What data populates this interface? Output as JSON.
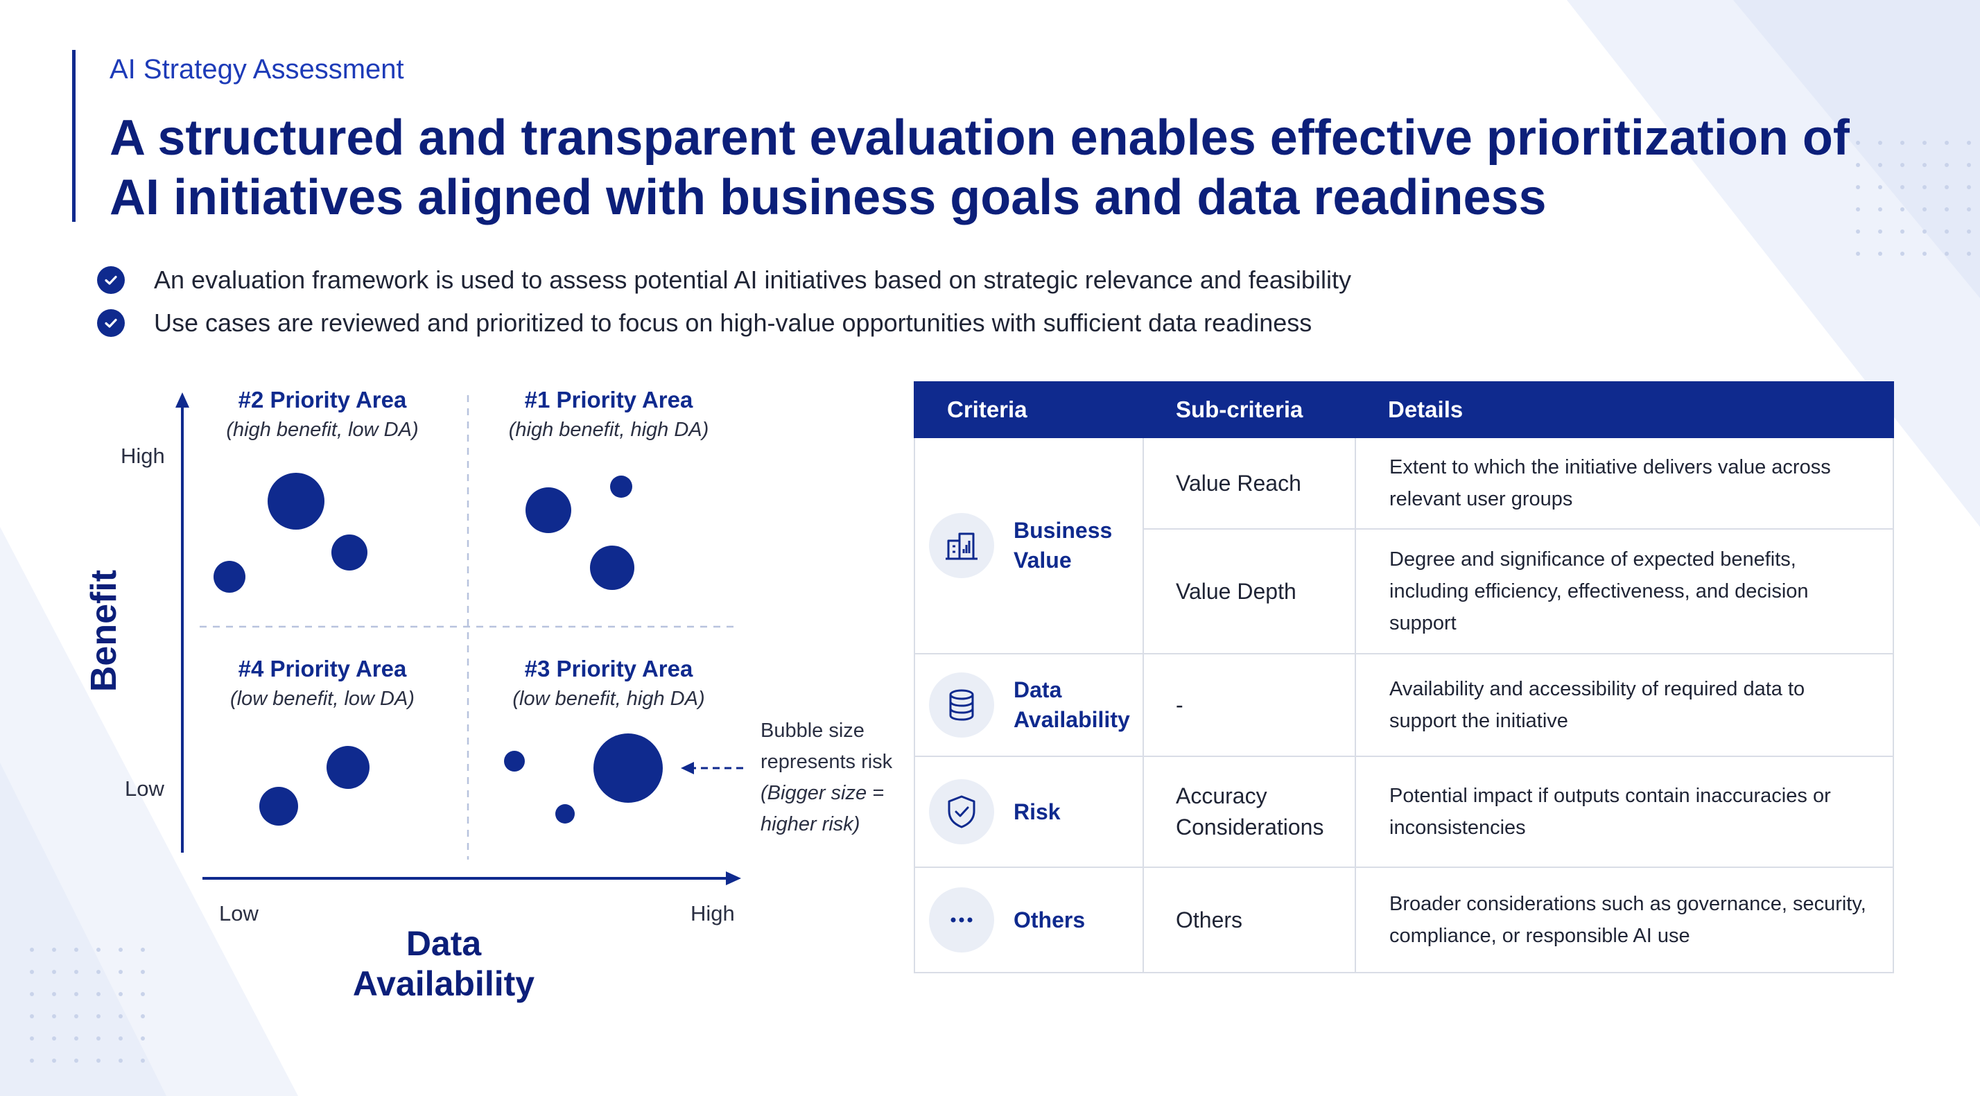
{
  "header": {
    "eyebrow": "AI Strategy Assessment",
    "title": "A structured and transparent evaluation enables effective prioritization of AI initiatives aligned with business goals and data readiness"
  },
  "bullets": [
    "An evaluation framework is used to assess potential AI initiatives based on strategic relevance and feasibility",
    "Use cases are reviewed and prioritized to focus on high-value opportunities with sufficient data readiness"
  ],
  "matrix": {
    "x_axis": {
      "title": "Data Availability",
      "low": "Low",
      "high": "High"
    },
    "y_axis": {
      "title": "Benefit",
      "low": "Low",
      "high": "High"
    },
    "quadrants": [
      {
        "id": "q2",
        "title": "#2 Priority Area",
        "subtitle": "(high benefit, low DA)"
      },
      {
        "id": "q1",
        "title": "#1 Priority Area",
        "subtitle": "(high benefit, high DA)"
      },
      {
        "id": "q4",
        "title": "#4 Priority Area",
        "subtitle": "(low benefit, low DA)"
      },
      {
        "id": "q3",
        "title": "#3 Priority Area",
        "subtitle": "(low benefit, high DA)"
      }
    ],
    "legend_note": {
      "line1": "Bubble size",
      "line2": "represents risk",
      "line3": "(Bigger size =",
      "line4": "higher risk)"
    },
    "bubble_color": "#0f2a8e"
  },
  "table": {
    "headers": [
      "Criteria",
      "Sub-criteria",
      "Details"
    ],
    "groups": [
      {
        "criteria": "Business Value",
        "icon": "building-chart-icon",
        "rows": [
          {
            "sub": "Value Reach",
            "details": "Extent to which the initiative delivers value across relevant user groups"
          },
          {
            "sub": "Value Depth",
            "details": "Degree and significance of expected benefits, including efficiency, effectiveness, and decision support"
          }
        ]
      },
      {
        "criteria": "Data Availability",
        "icon": "database-icon",
        "rows": [
          {
            "sub": "-",
            "details": "Availability and accessibility of required data to support the initiative"
          }
        ]
      },
      {
        "criteria": "Risk",
        "icon": "shield-check-icon",
        "rows": [
          {
            "sub": "Accuracy Considerations",
            "details": "Potential impact if outputs contain inaccuracies or inconsistencies"
          }
        ]
      },
      {
        "criteria": "Others",
        "icon": "more-dots-icon",
        "rows": [
          {
            "sub": "Others",
            "details": "Broader considerations such as governance, security, compliance, or responsible AI use"
          }
        ]
      }
    ]
  },
  "colors": {
    "primary": "#0f2a8e",
    "accent_text": "#1d3bb8",
    "border": "#d9dde6",
    "icon_bg": "#eaeef6"
  }
}
